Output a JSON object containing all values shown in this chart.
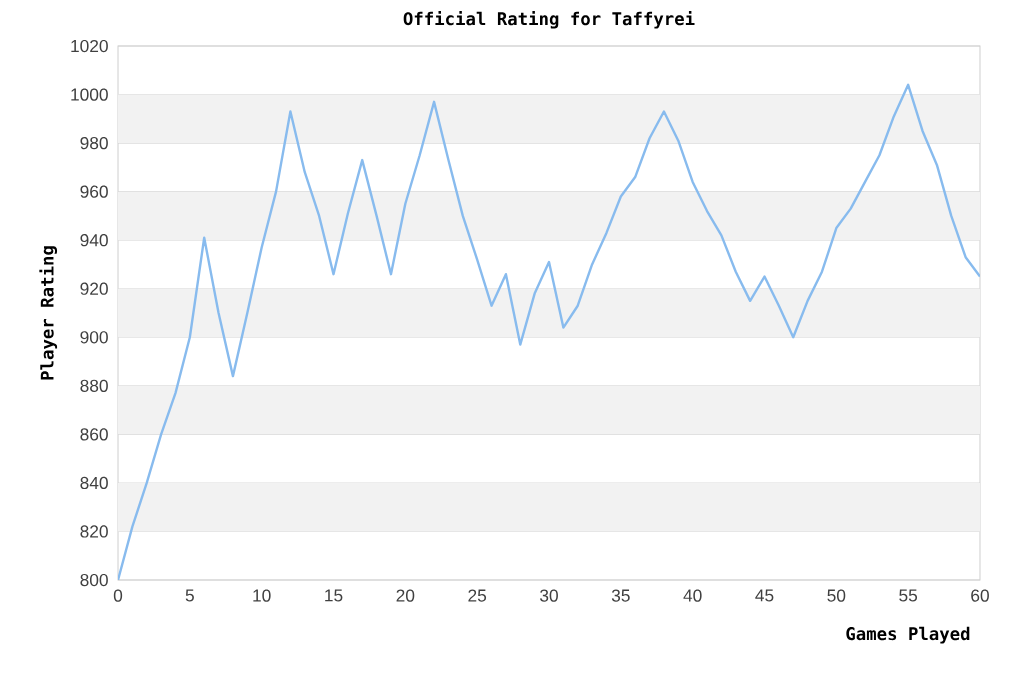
{
  "chart_data": {
    "type": "line",
    "title": "Official Rating for Taffyrei",
    "xlabel": "Games Played",
    "ylabel": "Player Rating",
    "x": [
      0,
      1,
      2,
      3,
      4,
      5,
      6,
      7,
      8,
      9,
      10,
      11,
      12,
      13,
      14,
      15,
      16,
      17,
      18,
      19,
      20,
      21,
      22,
      23,
      24,
      25,
      26,
      27,
      28,
      29,
      30,
      31,
      32,
      33,
      34,
      35,
      36,
      37,
      38,
      39,
      40,
      41,
      42,
      43,
      44,
      45,
      46,
      47,
      48,
      49,
      50,
      51,
      52,
      53,
      54,
      55,
      56,
      57,
      58,
      59,
      60
    ],
    "series": [
      {
        "color": "#88bbee",
        "values": [
          800,
          822,
          840,
          860,
          877,
          900,
          941,
          910,
          884,
          910,
          937,
          960,
          993,
          968,
          950,
          926,
          951,
          973,
          950,
          926,
          955,
          975,
          997,
          973,
          950,
          932,
          913,
          926,
          897,
          918,
          931,
          904,
          913,
          930,
          943,
          958,
          966,
          982,
          993,
          981,
          964,
          952,
          942,
          927,
          915,
          925,
          913,
          900,
          915,
          927,
          945,
          953,
          964,
          975,
          991,
          1004,
          985,
          971,
          950,
          933,
          925
        ]
      }
    ],
    "xlim": [
      0,
      60
    ],
    "ylim": [
      800,
      1020
    ],
    "xticks": [
      0,
      5,
      10,
      15,
      20,
      25,
      30,
      35,
      40,
      45,
      50,
      55,
      60
    ],
    "yticks": [
      800,
      820,
      840,
      860,
      880,
      900,
      920,
      940,
      960,
      980,
      1000,
      1020
    ],
    "grid": "y",
    "marker": "none",
    "line_style": "solid"
  }
}
